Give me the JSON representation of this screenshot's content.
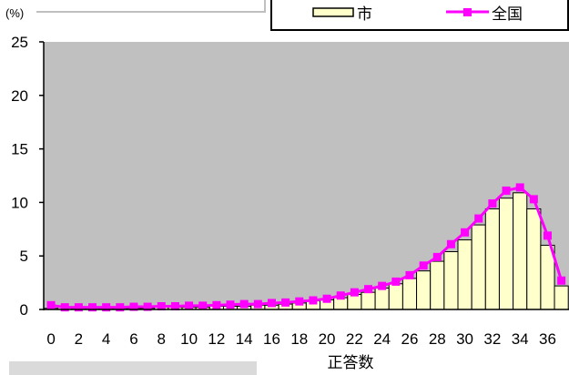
{
  "colors": {
    "plot_background": "#C0C0C0",
    "bar_fill": "#FFFFCC",
    "bar_stroke": "#000000",
    "line": "#FF00FF",
    "axis": "#000000"
  },
  "chart_data": {
    "type": "bar",
    "xlabel": "正答数",
    "ylabel": "(%)",
    "ylim": [
      0,
      25
    ],
    "y_ticks": [
      0,
      5,
      10,
      15,
      20,
      25
    ],
    "categories": [
      0,
      1,
      2,
      3,
      4,
      5,
      6,
      7,
      8,
      9,
      10,
      11,
      12,
      13,
      14,
      15,
      16,
      17,
      18,
      19,
      20,
      21,
      22,
      23,
      24,
      25,
      26,
      27,
      28,
      29,
      30,
      31,
      32,
      33,
      34,
      35,
      36,
      37
    ],
    "x_ticks": [
      0,
      2,
      4,
      6,
      8,
      10,
      12,
      14,
      16,
      18,
      20,
      22,
      24,
      26,
      28,
      30,
      32,
      34,
      36
    ],
    "grid": false,
    "legend": "top-right",
    "series": [
      {
        "name": "市",
        "type": "bar",
        "values": [
          0.1,
          0.0,
          0.1,
          0.1,
          0.1,
          0.1,
          0.1,
          0.1,
          0.2,
          0.2,
          0.2,
          0.2,
          0.3,
          0.3,
          0.3,
          0.4,
          0.4,
          0.5,
          0.6,
          0.8,
          0.9,
          1.1,
          1.4,
          1.6,
          2.0,
          2.4,
          2.9,
          3.6,
          4.5,
          5.4,
          6.5,
          7.9,
          9.4,
          10.4,
          10.9,
          9.4,
          6.0,
          2.2
        ]
      },
      {
        "name": "全国",
        "type": "line",
        "marker": "square",
        "values": [
          0.4,
          0.2,
          0.2,
          0.2,
          0.2,
          0.2,
          0.25,
          0.25,
          0.3,
          0.3,
          0.35,
          0.35,
          0.4,
          0.45,
          0.5,
          0.5,
          0.6,
          0.65,
          0.75,
          0.85,
          1.0,
          1.3,
          1.6,
          1.9,
          2.2,
          2.6,
          3.2,
          4.1,
          4.9,
          6.1,
          7.2,
          8.5,
          9.9,
          11.1,
          11.4,
          10.3,
          6.9,
          2.7
        ]
      }
    ]
  }
}
